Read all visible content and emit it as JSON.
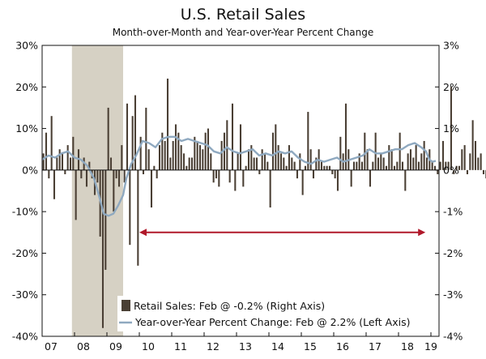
{
  "chart_data": {
    "type": "bar+line",
    "title": "U.S. Retail Sales",
    "subtitle": "Month-over-Month and Year-over-Year Percent Change",
    "left_axis": {
      "ticks": [
        "30%",
        "20%",
        "10%",
        "0%",
        "-10%",
        "-20%",
        "-30%",
        "-40%"
      ],
      "range": [
        -40,
        30
      ]
    },
    "right_axis": {
      "ticks": [
        "3%",
        "2%",
        "1%",
        "0%",
        "-1%",
        "-2%",
        "-3%",
        "-4%"
      ],
      "range": [
        -4,
        3
      ]
    },
    "x_axis": {
      "ticks": [
        "07",
        "08",
        "09",
        "10",
        "11",
        "12",
        "13",
        "14",
        "15",
        "16",
        "17",
        "18",
        "19"
      ],
      "range": [
        2007,
        2019.25
      ]
    },
    "recession_shading": {
      "start": 2007.92,
      "end": 2009.5,
      "color": "#d6d1c4"
    },
    "annotation_arrow": {
      "x_start": 2010.0,
      "x_end": 2018.83,
      "y_right_axis": -1.5,
      "color": "#b0182a"
    },
    "series": [
      {
        "name": "Retail Sales: Feb @ -0.2% (Right Axis)",
        "type": "bar",
        "axis": "right",
        "color": "#4a3f34",
        "x_start": 2007.0,
        "step": 0.08333,
        "values": [
          0.4,
          0.9,
          -0.2,
          1.3,
          -0.7,
          0.3,
          0.5,
          0.4,
          -0.1,
          0.6,
          0.3,
          0.8,
          -1.2,
          0.5,
          -0.2,
          0.3,
          -0.4,
          0.2,
          -0.2,
          -0.6,
          -0.3,
          -1.6,
          -3.8,
          -2.4,
          1.5,
          0.3,
          -1.0,
          -0.2,
          -0.4,
          0.6,
          -0.3,
          1.6,
          -1.8,
          1.3,
          1.8,
          -2.3,
          0.8,
          -0.1,
          1.5,
          0.5,
          -0.9,
          0.1,
          -0.2,
          0.6,
          0.9,
          0.7,
          2.2,
          0.3,
          0.7,
          1.1,
          0.9,
          0.6,
          0.4,
          0.1,
          0.3,
          0.3,
          0.8,
          0.7,
          0.6,
          0.5,
          0.9,
          1.0,
          0.4,
          -0.3,
          -0.2,
          -0.4,
          0.7,
          0.9,
          1.2,
          -0.3,
          1.6,
          -0.5,
          0.4,
          1.1,
          -0.4,
          0.1,
          0.5,
          0.6,
          0.3,
          0.3,
          -0.1,
          0.5,
          0.4,
          0.2,
          -0.9,
          0.9,
          1.1,
          0.6,
          0.4,
          0.3,
          0.1,
          0.6,
          0.3,
          0.2,
          -0.2,
          0.4,
          -0.6,
          0.1,
          1.4,
          0.5,
          -0.2,
          0.3,
          0.5,
          0.2,
          0.1,
          0.1,
          0.1,
          -0.1,
          -0.2,
          -0.5,
          0.8,
          0.4,
          1.6,
          0.5,
          -0.4,
          0.2,
          0.2,
          0.4,
          0.2,
          0.9,
          0.5,
          -0.4,
          0.2,
          0.9,
          0.3,
          0.4,
          0.3,
          0.1,
          0.6,
          0.5,
          0.1,
          0.2,
          0.9,
          0.2,
          -0.5,
          0.4,
          0.5,
          0.3,
          0.6,
          0.2,
          0.4,
          0.7,
          0.3,
          0.5,
          0.2,
          0.1,
          -0.1,
          0.2,
          0.7,
          0.2,
          0.2,
          2.0,
          -0.1,
          0.1,
          0.1,
          0.5,
          0.6,
          -0.1,
          0.4,
          1.2,
          0.7,
          0.3,
          0.4,
          -0.1,
          -0.2,
          0.5,
          0.3,
          0.9,
          -1.6,
          0.7,
          -0.2
        ],
        "visible_values": {
          "last_month": "Feb",
          "last_value": "-0.2%"
        }
      },
      {
        "name": "Year-over-Year Percent Change: Feb @ 2.2% (Left Axis)",
        "type": "line",
        "axis": "left",
        "color": "#8fa9c0",
        "x": [
          2007.0,
          2007.2,
          2007.4,
          2007.6,
          2007.8,
          2008.0,
          2008.2,
          2008.4,
          2008.6,
          2008.75,
          2008.9,
          2009.05,
          2009.2,
          2009.35,
          2009.5,
          2009.6,
          2009.75,
          2009.9,
          2010.1,
          2010.3,
          2010.5,
          2010.7,
          2010.9,
          2011.1,
          2011.3,
          2011.5,
          2011.7,
          2011.9,
          2012.1,
          2012.3,
          2012.5,
          2012.7,
          2012.9,
          2013.1,
          2013.3,
          2013.5,
          2013.7,
          2013.9,
          2014.1,
          2014.3,
          2014.5,
          2014.7,
          2014.9,
          2015.1,
          2015.3,
          2015.5,
          2015.7,
          2015.9,
          2016.1,
          2016.3,
          2016.5,
          2016.7,
          2016.9,
          2017.1,
          2017.3,
          2017.5,
          2017.7,
          2017.9,
          2018.1,
          2018.3,
          2018.5,
          2018.7,
          2018.85,
          2018.95,
          2019.05,
          2019.15
        ],
        "values": [
          2.5,
          3.5,
          3.0,
          4.0,
          4.5,
          3.0,
          2.5,
          1.0,
          -2.0,
          -6.0,
          -10.5,
          -11.0,
          -10.5,
          -8.5,
          -6.0,
          -2.0,
          1.5,
          3.5,
          7.0,
          6.5,
          5.5,
          7.5,
          8.0,
          8.0,
          7.0,
          7.5,
          7.0,
          6.5,
          6.0,
          4.5,
          4.0,
          5.5,
          4.5,
          4.0,
          4.5,
          5.0,
          3.5,
          4.0,
          3.5,
          4.5,
          4.0,
          4.5,
          3.0,
          2.0,
          1.5,
          2.5,
          2.0,
          2.5,
          3.0,
          2.0,
          2.5,
          3.0,
          3.5,
          5.0,
          4.0,
          4.0,
          4.5,
          5.0,
          5.0,
          6.0,
          6.5,
          5.5,
          4.5,
          2.5,
          2.0,
          2.2
        ],
        "visible_values": {
          "last_month": "Feb",
          "last_value": "2.2%"
        }
      }
    ],
    "legend": {
      "placement": "bottom-right"
    }
  }
}
